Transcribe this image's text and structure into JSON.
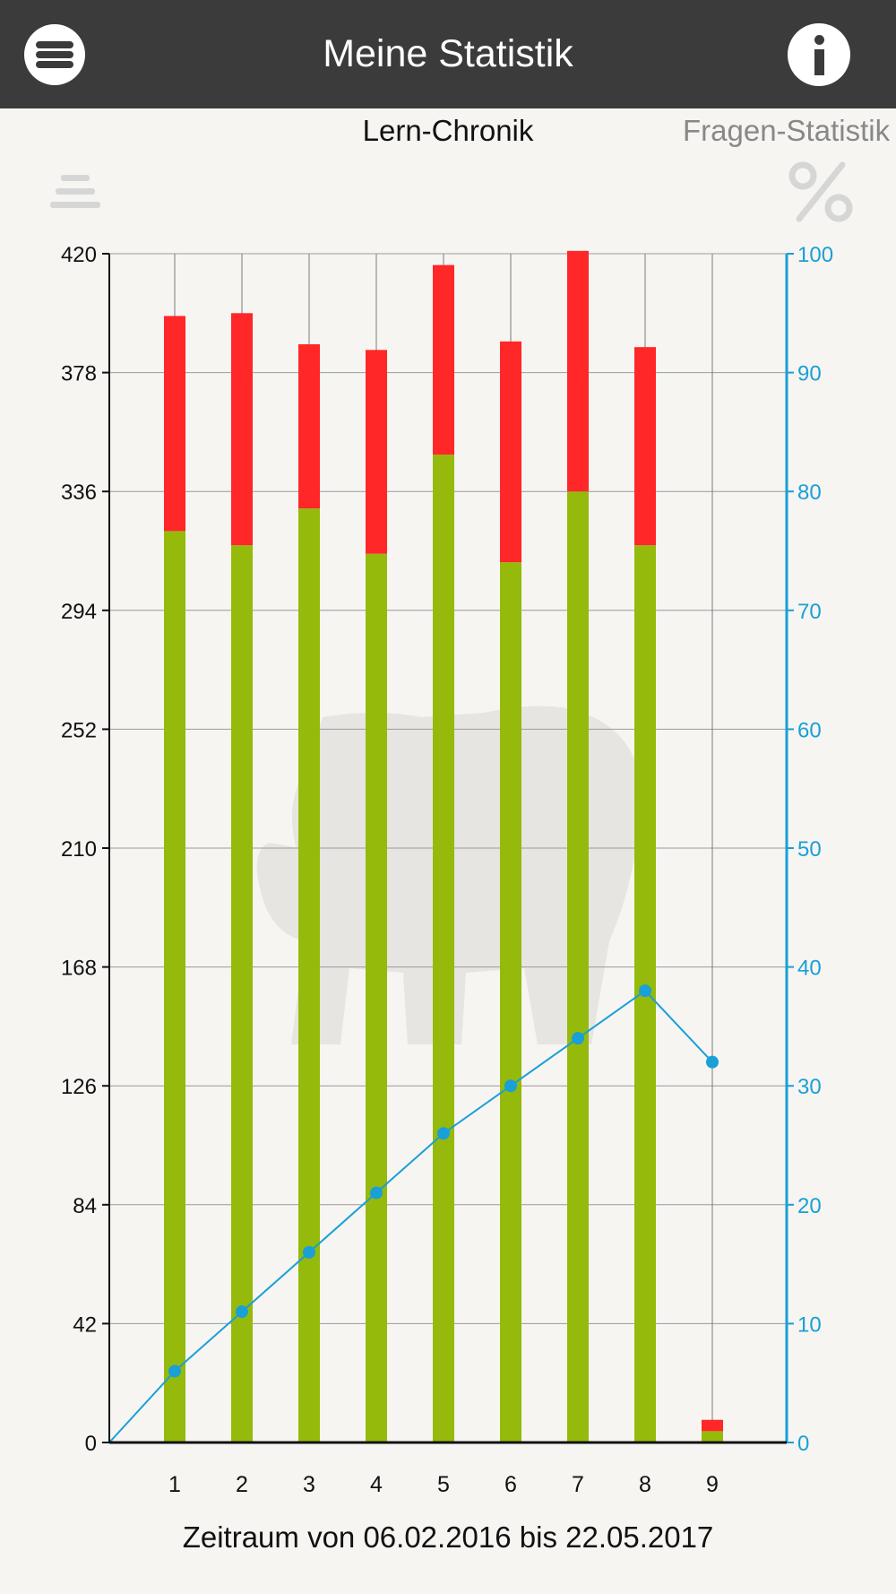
{
  "header": {
    "title": "Meine Statistik",
    "menu_icon": "hamburger-menu-icon",
    "info_icon": "info-icon"
  },
  "tabs": [
    {
      "label": "Lern-Chronik",
      "active": true
    },
    {
      "label": "Fragen-Statistik",
      "active": false
    }
  ],
  "toolbar": {
    "list_icon": "list-icon",
    "percent_icon": "percent-icon"
  },
  "colors": {
    "correct": "#95ba0c",
    "wrong": "#ff2727",
    "line": "#1a9fd6",
    "header": "#3b3b3b"
  },
  "chart_data": {
    "type": "bar",
    "stacked": true,
    "categories": [
      "1",
      "2",
      "3",
      "4",
      "5",
      "6",
      "7",
      "8",
      "9"
    ],
    "series": [
      {
        "values": [
          322,
          317,
          330,
          314,
          349,
          311,
          336,
          317,
          4
        ]
      },
      {
        "values": [
          76,
          82,
          58,
          72,
          67,
          78,
          85,
          70,
          4
        ]
      }
    ],
    "line_series": {
      "axis": "right",
      "values": [
        6,
        11,
        16,
        21,
        26,
        30,
        34,
        38,
        32
      ]
    },
    "yticks_left": [
      0,
      42,
      84,
      126,
      168,
      210,
      252,
      294,
      336,
      378,
      420
    ],
    "yticks_right": [
      0,
      10,
      20,
      30,
      40,
      50,
      60,
      70,
      80,
      90,
      100
    ],
    "ylim_left": [
      0,
      420
    ],
    "ylim_right": [
      0,
      100
    ],
    "grid": true,
    "xlabel": "Zeitraum von 06.02.2016 bis 22.05.2017"
  }
}
